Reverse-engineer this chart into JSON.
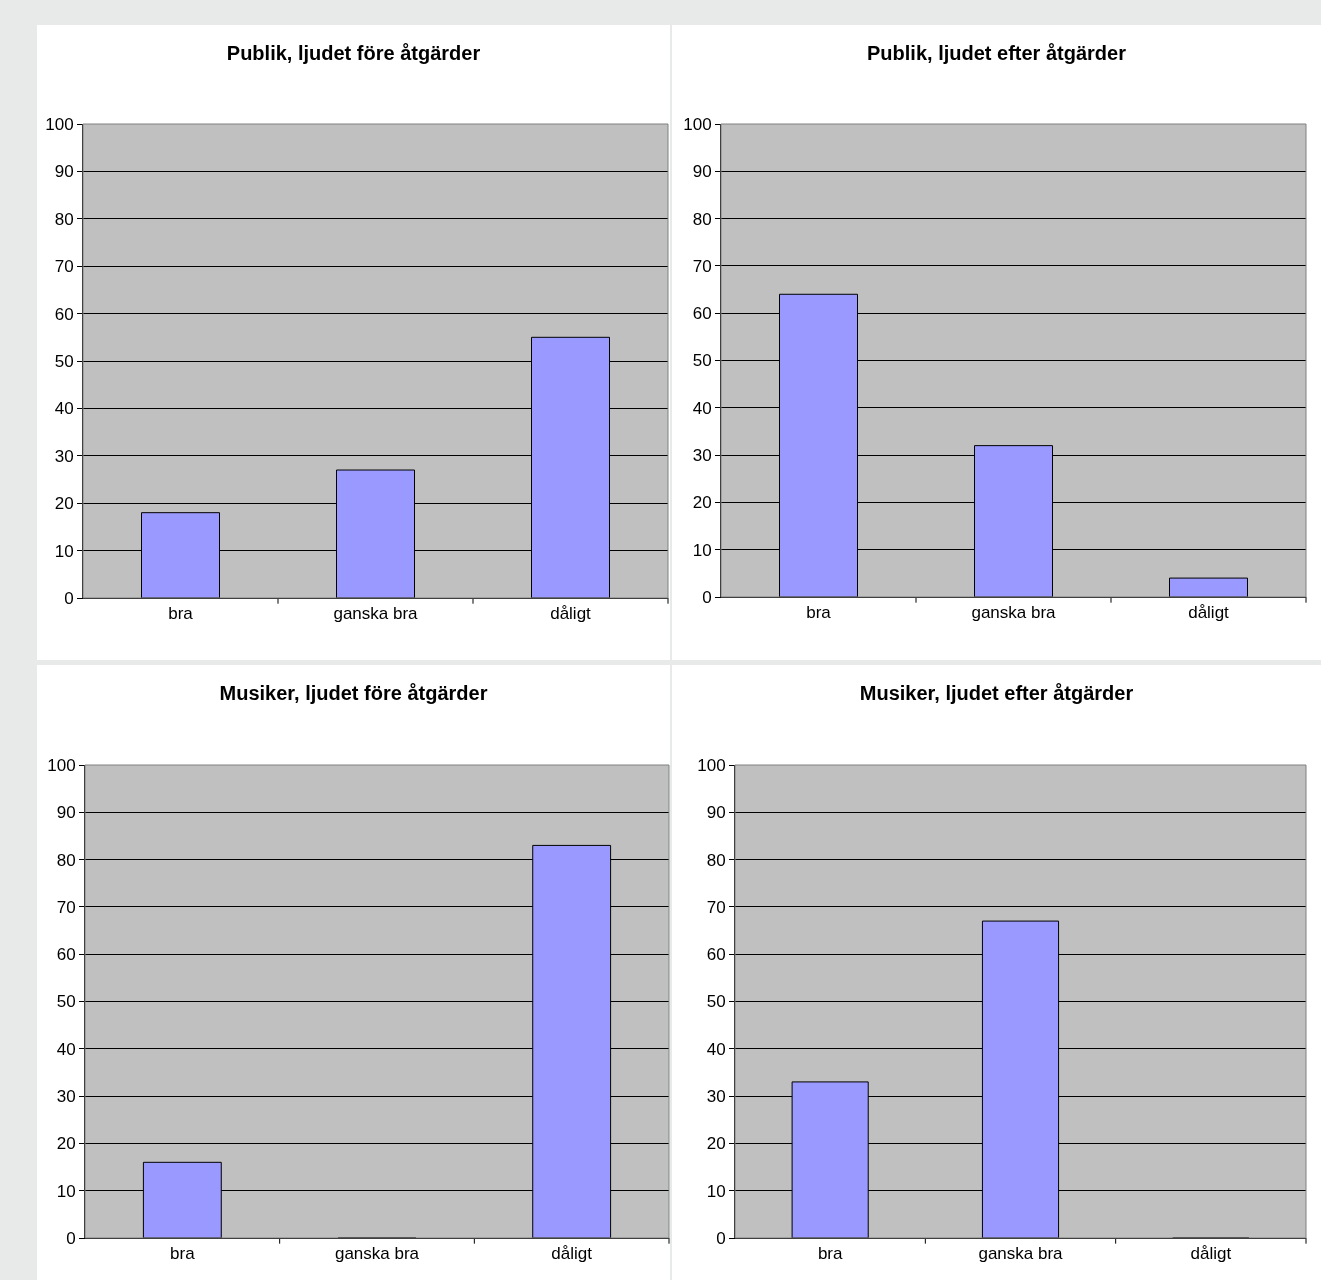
{
  "chart_data": [
    {
      "type": "bar",
      "title": "Publik, ljudet före åtgärder",
      "categories": [
        "bra",
        "ganska bra",
        "dåligt"
      ],
      "values": [
        18,
        27,
        55
      ],
      "color": "#9999ff",
      "ylim": [
        0,
        100
      ],
      "yticks": [
        0,
        10,
        20,
        30,
        40,
        50,
        60,
        70,
        80,
        90,
        100
      ],
      "grid": "y"
    },
    {
      "type": "bar",
      "title": "Publik, ljudet efter åtgärder",
      "categories": [
        "bra",
        "ganska bra",
        "dåligt"
      ],
      "values": [
        64,
        32,
        4
      ],
      "color": "#9999ff",
      "ylim": [
        0,
        100
      ],
      "yticks": [
        0,
        10,
        20,
        30,
        40,
        50,
        60,
        70,
        80,
        90,
        100
      ],
      "grid": "y"
    },
    {
      "type": "bar",
      "title": "Musiker, ljudet före åtgärder",
      "categories": [
        "bra",
        "ganska bra",
        "dåligt"
      ],
      "values": [
        16,
        0,
        83
      ],
      "color": "#9999ff",
      "ylim": [
        0,
        100
      ],
      "yticks": [
        0,
        10,
        20,
        30,
        40,
        50,
        60,
        70,
        80,
        90,
        100
      ],
      "grid": "y"
    },
    {
      "type": "bar",
      "title": "Musiker, ljudet efter åtgärder",
      "categories": [
        "bra",
        "ganska bra",
        "dåligt"
      ],
      "values": [
        33,
        67,
        0
      ],
      "color": "#9999ff",
      "ylim": [
        0,
        100
      ],
      "yticks": [
        0,
        10,
        20,
        30,
        40,
        50,
        60,
        70,
        80,
        90,
        100
      ],
      "grid": "y"
    }
  ]
}
